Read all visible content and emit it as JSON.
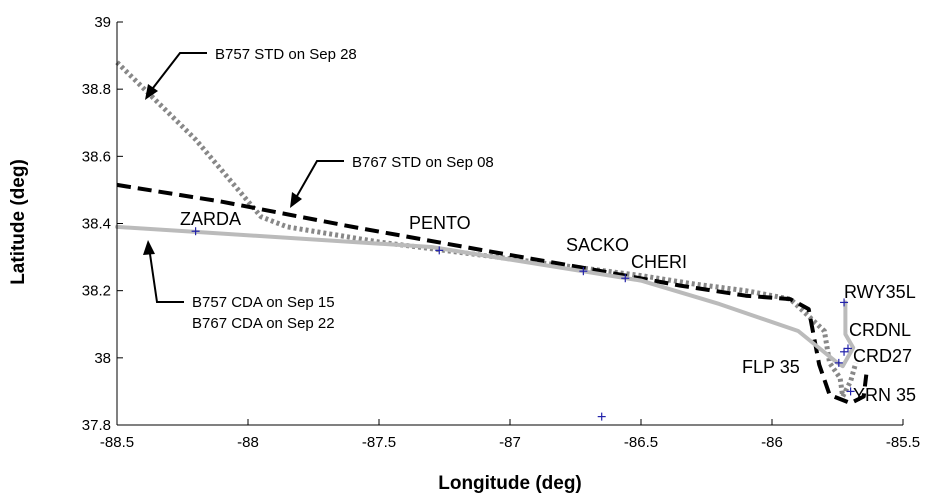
{
  "chart_data": {
    "type": "line",
    "xlabel": "Longitude (deg)",
    "ylabel": "Latitude (deg)",
    "xlim": [
      -88.5,
      -85.5
    ],
    "ylim": [
      37.8,
      39
    ],
    "xticks": [
      -88.5,
      -88,
      -87.5,
      -87,
      -86.5,
      -86,
      -85.5
    ],
    "xtick_labels": [
      "-88.5",
      "-88",
      "-87.5",
      "-87",
      "-86.5",
      "-86",
      "-85.5"
    ],
    "yticks": [
      37.8,
      38,
      38.2,
      38.4,
      38.6,
      38.8,
      39
    ],
    "ytick_labels": [
      "37.8",
      "38",
      "38.2",
      "38.4",
      "38.6",
      "38.8",
      "39"
    ],
    "grid": false,
    "series": [
      {
        "style": "dotted",
        "color": "#888888",
        "x": [
          -88.5,
          -88.2,
          -87.95,
          -87.85,
          -87.5,
          -87.0,
          -86.6,
          -86.5,
          -86.3,
          -86.1,
          -85.93,
          -85.8,
          -85.78,
          -85.74,
          -85.73,
          -85.7,
          -85.68
        ],
        "y": [
          38.88,
          38.65,
          38.42,
          38.39,
          38.345,
          38.295,
          38.255,
          38.245,
          38.22,
          38.2,
          38.175,
          38.08,
          37.985,
          37.94,
          37.885,
          37.93,
          37.985
        ]
      },
      {
        "style": "dashed",
        "color": "#000000",
        "x": [
          -88.5,
          -88.1,
          -87.6,
          -87.1,
          -86.7,
          -86.35,
          -86.1,
          -85.93,
          -85.86,
          -85.82,
          -85.78,
          -85.7,
          -85.65,
          -85.64
        ],
        "y": [
          38.515,
          38.465,
          38.39,
          38.32,
          38.265,
          38.215,
          38.185,
          38.175,
          38.145,
          37.98,
          37.89,
          37.865,
          37.885,
          37.95
        ]
      },
      {
        "style": "solid",
        "color": "#bbbbbb",
        "x": [
          -88.5,
          -88.2,
          -87.8,
          -87.3,
          -86.7,
          -86.5,
          -86.2,
          -85.9,
          -85.75,
          -85.73,
          -85.69,
          -85.72,
          -85.72
        ],
        "y": [
          38.39,
          38.375,
          38.355,
          38.33,
          38.255,
          38.23,
          38.16,
          38.08,
          37.985,
          37.975,
          38.03,
          38.07,
          38.165
        ]
      }
    ],
    "waypoints": [
      {
        "name": "ZARDA",
        "x": -88.2,
        "y": 38.377
      },
      {
        "name": "PENTO",
        "x": -87.27,
        "y": 38.32
      },
      {
        "name": "SACKO",
        "x": -86.72,
        "y": 38.258
      },
      {
        "name": "CHERI",
        "x": -86.56,
        "y": 38.237
      },
      {
        "name": "RWY35L",
        "x": -85.725,
        "y": 38.165
      },
      {
        "name": "CRDNL",
        "x": -85.71,
        "y": 38.028
      },
      {
        "name": "CRD27",
        "x": -85.725,
        "y": 38.018
      },
      {
        "name": "FLP 35",
        "x": -85.745,
        "y": 37.985
      },
      {
        "name": "YRN 35",
        "x": -85.7,
        "y": 37.9
      }
    ],
    "extra_markers": [
      {
        "x": -86.65,
        "y": 37.825
      }
    ],
    "annotations": [
      {
        "lines": [
          "B757 STD on Sep 28"
        ]
      },
      {
        "lines": [
          "B767 STD on Sep 08"
        ]
      },
      {
        "lines": [
          "B757 CDA on Sep 15",
          "B767 CDA on Sep 22"
        ]
      }
    ]
  }
}
